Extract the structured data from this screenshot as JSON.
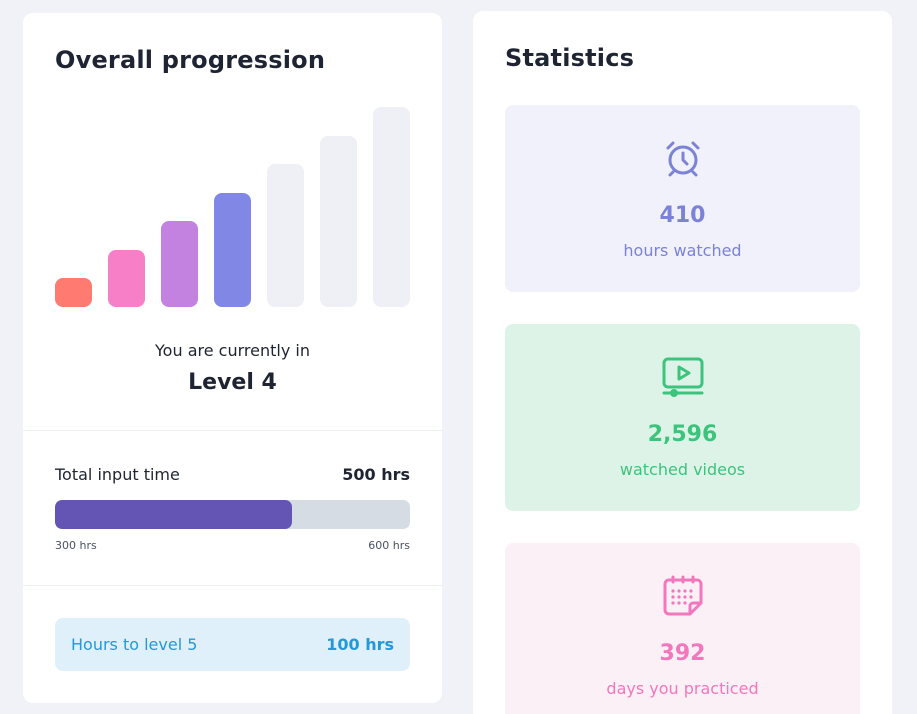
{
  "progression": {
    "title": "Overall progression",
    "level_bars": [
      {
        "level": 1,
        "color": "#ff7a70",
        "achieved": true
      },
      {
        "level": 2,
        "color": "#f77fc8",
        "achieved": true
      },
      {
        "level": 3,
        "color": "#c382e0",
        "achieved": true
      },
      {
        "level": 4,
        "color": "#8187e4",
        "achieved": true
      },
      {
        "level": 5,
        "color": "#eef0f5",
        "achieved": false
      },
      {
        "level": 6,
        "color": "#eef0f5",
        "achieved": false
      },
      {
        "level": 7,
        "color": "#eef0f5",
        "achieved": false
      }
    ],
    "current_prefix": "You are currently in",
    "current_level": "Level 4",
    "input_label": "Total input time",
    "input_value": "500 hrs",
    "progress_fraction": 0.667,
    "progress_min_label": "300 hrs",
    "progress_max_label": "600 hrs",
    "next_level_label": "Hours to level 5",
    "next_level_value": "100 hrs"
  },
  "statistics": {
    "title": "Statistics",
    "items": [
      {
        "icon": "alarm-clock-icon",
        "value": "410",
        "label": "hours watched",
        "color": "#7b82d8",
        "bg": "#f0f1fb"
      },
      {
        "icon": "video-play-icon",
        "value": "2,596",
        "label": "watched videos",
        "color": "#3cc37c",
        "bg": "#def3e8"
      },
      {
        "icon": "calendar-icon",
        "value": "392",
        "label": "days you practiced",
        "color": "#f277bd",
        "bg": "#fcf0f7"
      }
    ]
  }
}
